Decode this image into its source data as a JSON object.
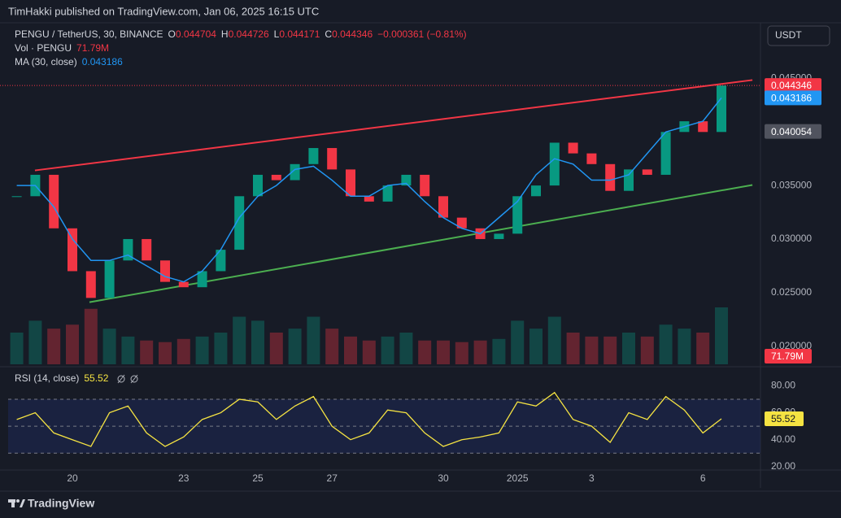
{
  "header": {
    "published": "TimHakki published on TradingView.com, Jan 06, 2025 16:15 UTC",
    "currency": "USDT",
    "brand": "TradingView"
  },
  "chart_data": [
    {
      "type": "candlestick",
      "legend": {
        "open_label": "O",
        "open": 0.044704,
        "high_label": "H",
        "high": 0.044726,
        "low_label": "L",
        "low": 0.044171,
        "close_label": "C",
        "change": "−0.000361 (−0.81%)",
        "volume": "71.79M"
      },
      "categories": [
        null,
        null,
        null,
        "20",
        null,
        null,
        null,
        null,
        null,
        "23",
        null,
        null,
        null,
        "25",
        null,
        null,
        null,
        "27",
        null,
        null,
        null,
        null,
        null,
        "30",
        null,
        null,
        null,
        "2025",
        null,
        null,
        null,
        "3",
        null,
        null,
        null,
        null,
        null,
        "6",
        null
      ],
      "series": [
        {
          "name": "PENGU / TetherUS, 30, BINANCE",
          "up_color": "#089981",
          "down_color": "#f23645",
          "values": [
            0.034,
            0.036,
            0.031,
            0.027,
            0.0245,
            0.028,
            0.03,
            0.028,
            0.026,
            0.0255,
            0.027,
            0.029,
            0.034,
            0.036,
            0.0355,
            0.037,
            0.0385,
            0.0365,
            0.034,
            0.0335,
            0.035,
            0.036,
            0.034,
            0.032,
            0.031,
            0.03,
            0.0305,
            0.034,
            0.035,
            0.039,
            0.038,
            0.037,
            0.0345,
            0.0365,
            0.036,
            0.04,
            0.041,
            0.04,
            0.044346
          ]
        },
        {
          "name": "MA (30, close)",
          "color": "#2196f3",
          "values": [
            0.035,
            0.035,
            0.033,
            0.03,
            0.028,
            0.028,
            0.0285,
            0.0275,
            0.0265,
            0.026,
            0.027,
            0.029,
            0.032,
            0.034,
            0.035,
            0.0365,
            0.0368,
            0.0355,
            0.034,
            0.034,
            0.035,
            0.0352,
            0.0335,
            0.032,
            0.031,
            0.0305,
            0.032,
            0.0335,
            0.036,
            0.0375,
            0.037,
            0.0355,
            0.0355,
            0.036,
            0.038,
            0.04,
            0.0405,
            0.041,
            0.043186
          ]
        },
        {
          "name": "Vol · PENGU",
          "values": [
            40,
            55,
            45,
            50,
            70,
            45,
            35,
            30,
            28,
            32,
            35,
            40,
            60,
            55,
            40,
            45,
            60,
            45,
            35,
            30,
            35,
            40,
            30,
            30,
            28,
            30,
            32,
            55,
            45,
            60,
            40,
            35,
            35,
            40,
            35,
            50,
            45,
            40,
            71.79
          ]
        }
      ],
      "trendlines": [
        {
          "color": "#f23645",
          "x": [
            0.98,
            39.67
          ],
          "values": [
            0.03641,
            0.04485
          ]
        },
        {
          "color": "#4caf50",
          "x": [
            3.92,
            39.67
          ],
          "values": [
            0.0241,
            0.03505
          ]
        }
      ],
      "price_line": {
        "value": 0.040054,
        "color": "#50535e"
      },
      "ylim": [
        0.0183,
        0.0502
      ],
      "yticks": [
        {
          "value": 0.02,
          "label": "0.020000"
        },
        {
          "value": 0.025,
          "label": "0.025000"
        },
        {
          "value": 0.03,
          "label": "0.030000"
        },
        {
          "value": 0.035,
          "label": "0.035000"
        },
        {
          "value": 0.045,
          "label": "0.045000"
        }
      ],
      "grid": false
    },
    {
      "type": "line",
      "series": [
        {
          "name": "RSI (14, close)",
          "color": "#f5e342",
          "values": [
            55,
            60,
            45,
            40,
            35,
            60,
            65,
            45,
            35,
            42,
            55,
            60,
            70,
            68,
            55,
            65,
            72,
            50,
            40,
            45,
            62,
            60,
            45,
            35,
            40,
            42,
            45,
            68,
            65,
            75,
            55,
            50,
            38,
            60,
            55,
            72,
            62,
            45,
            55.52
          ]
        }
      ],
      "levels": [
        30,
        50,
        70
      ],
      "ylim": [
        17.5,
        91.7
      ],
      "yticks": [
        {
          "value": 20,
          "label": "20.00"
        },
        {
          "value": 40,
          "label": "40.00"
        },
        {
          "value": 60,
          "label": "60.00"
        },
        {
          "value": 80,
          "label": "80.00"
        }
      ],
      "grid": false
    }
  ]
}
